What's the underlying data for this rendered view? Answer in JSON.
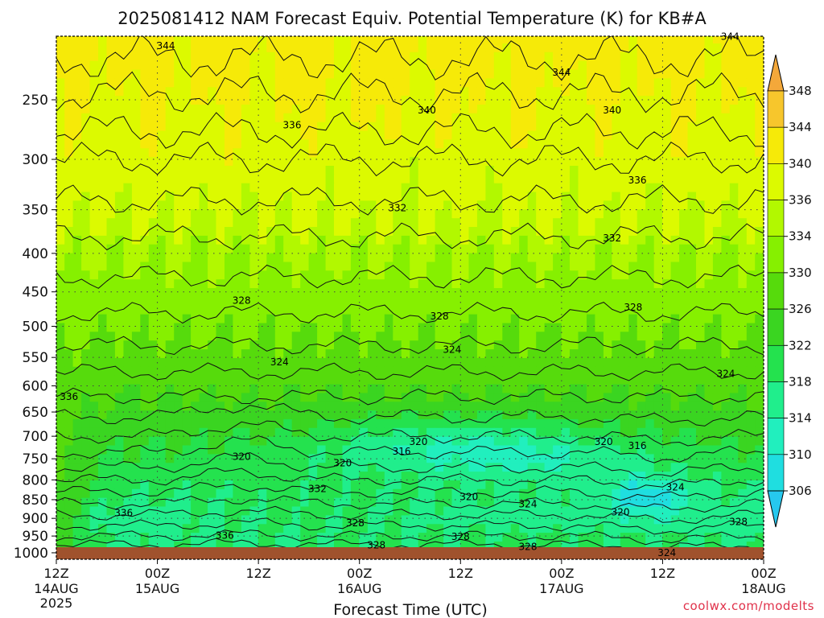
{
  "chart_data": {
    "type": "heatmap",
    "title": "2025081412 NAM Forecast Equiv. Potential Temperature (K) for KB#A",
    "xlabel": "Forecast Time (UTC)",
    "ylabel": "",
    "x_ticks": [
      {
        "line1": "12Z",
        "line2": "14AUG",
        "line3": "2025"
      },
      {
        "line1": "00Z",
        "line2": "15AUG",
        "line3": ""
      },
      {
        "line1": "12Z",
        "line2": "",
        "line3": ""
      },
      {
        "line1": "00Z",
        "line2": "16AUG",
        "line3": ""
      },
      {
        "line1": "12Z",
        "line2": "",
        "line3": ""
      },
      {
        "line1": "00Z",
        "line2": "17AUG",
        "line3": ""
      },
      {
        "line1": "12Z",
        "line2": "",
        "line3": ""
      },
      {
        "line1": "00Z",
        "line2": "18AUG",
        "line3": ""
      }
    ],
    "x_range_hours": [
      0,
      84
    ],
    "y_ticks": [
      250,
      300,
      350,
      400,
      450,
      500,
      550,
      600,
      650,
      700,
      750,
      800,
      850,
      900,
      950,
      1000
    ],
    "y_axis": "pressure (hPa), log scale, decreasing upward",
    "y_range": [
      1020,
      200
    ],
    "grid": true,
    "colorbar": {
      "levels": [
        306,
        310,
        314,
        318,
        322,
        326,
        330,
        334,
        336,
        340,
        344,
        348
      ],
      "colors": [
        "#26c8ee",
        "#1fdee0",
        "#21efbe",
        "#20ee8c",
        "#24e24e",
        "#3ad521",
        "#56db0c",
        "#86f000",
        "#b2f800",
        "#dcfa00",
        "#f6ea08",
        "#f7c62c",
        "#f4a83a"
      ]
    },
    "contour_labels": [
      {
        "value": "344",
        "hour": 13,
        "p": 212
      },
      {
        "value": "344",
        "hour": 60,
        "p": 230
      },
      {
        "value": "344",
        "hour": 80,
        "p": 206
      },
      {
        "value": "340",
        "hour": 44,
        "p": 258
      },
      {
        "value": "340",
        "hour": 66,
        "p": 258
      },
      {
        "value": "336",
        "hour": 28,
        "p": 270
      },
      {
        "value": "336",
        "hour": 69,
        "p": 320
      },
      {
        "value": "332",
        "hour": 40.5,
        "p": 348
      },
      {
        "value": "332",
        "hour": 66,
        "p": 382
      },
      {
        "value": "328",
        "hour": 22,
        "p": 462
      },
      {
        "value": "328",
        "hour": 45.5,
        "p": 485
      },
      {
        "value": "328",
        "hour": 68.5,
        "p": 472
      },
      {
        "value": "324",
        "hour": 26.5,
        "p": 558
      },
      {
        "value": "324",
        "hour": 47,
        "p": 537
      },
      {
        "value": "324",
        "hour": 79.5,
        "p": 578
      },
      {
        "value": "320",
        "hour": 43,
        "p": 712
      },
      {
        "value": "320",
        "hour": 65,
        "p": 712
      },
      {
        "value": "320",
        "hour": 22,
        "p": 745
      },
      {
        "value": "320",
        "hour": 34,
        "p": 760
      },
      {
        "value": "320",
        "hour": 49,
        "p": 843
      },
      {
        "value": "320",
        "hour": 67,
        "p": 883
      },
      {
        "value": "316",
        "hour": 41,
        "p": 733
      },
      {
        "value": "316",
        "hour": 69,
        "p": 721
      },
      {
        "value": "324",
        "hour": 56,
        "p": 862
      },
      {
        "value": "324",
        "hour": 73.5,
        "p": 818
      },
      {
        "value": "324",
        "hour": 72.5,
        "p": 1000
      },
      {
        "value": "332",
        "hour": 31,
        "p": 822
      },
      {
        "value": "336",
        "hour": 1.5,
        "p": 620
      },
      {
        "value": "336",
        "hour": 8,
        "p": 885
      },
      {
        "value": "336",
        "hour": 20,
        "p": 948
      },
      {
        "value": "328",
        "hour": 35.5,
        "p": 913
      },
      {
        "value": "328",
        "hour": 38,
        "p": 977
      },
      {
        "value": "328",
        "hour": 48,
        "p": 952
      },
      {
        "value": "328",
        "hour": 56,
        "p": 982
      },
      {
        "value": "328",
        "hour": 81,
        "p": 910
      }
    ]
  },
  "credit": "coolwx.com/modelts"
}
